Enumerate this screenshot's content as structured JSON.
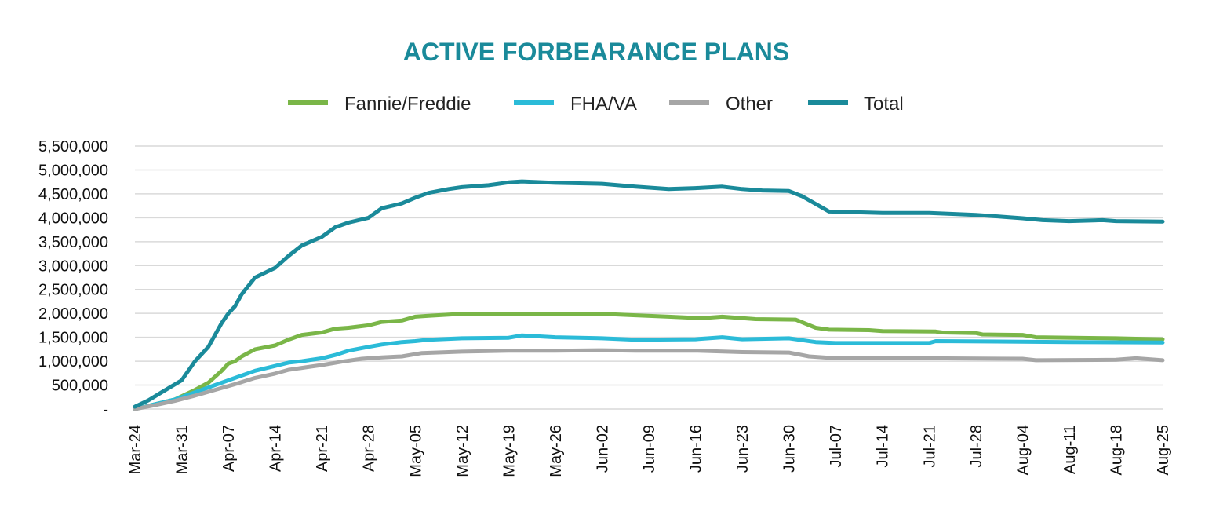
{
  "colors": {
    "title": "#1a8a9a",
    "fannie": "#7ab648",
    "fha": "#2bbbd8",
    "other": "#a6a6a6",
    "total": "#1a8a9a",
    "grid": "#d9d9d9"
  },
  "chart_data": {
    "type": "line",
    "title": "ACTIVE FORBEARANCE PLANS",
    "xlabel": "",
    "ylabel": "",
    "ylim": [
      0,
      5500000
    ],
    "y_ticks": [
      0,
      500000,
      1000000,
      1500000,
      2000000,
      2500000,
      3000000,
      3500000,
      4000000,
      4500000,
      5000000,
      5500000
    ],
    "y_tick_labels": [
      "-",
      "500,000",
      "1,000,000",
      "1,500,000",
      "2,000,000",
      "2,500,000",
      "3,000,000",
      "3,500,000",
      "4,000,000",
      "4,500,000",
      "5,000,000",
      "5,500,000"
    ],
    "x_day_range": [
      0,
      154
    ],
    "x_tick_days": [
      0,
      7,
      14,
      21,
      28,
      35,
      42,
      49,
      56,
      63,
      70,
      77,
      84,
      91,
      98,
      105,
      112,
      119,
      126,
      133,
      140,
      147,
      154
    ],
    "x_tick_labels": [
      "Mar-24",
      "Mar-31",
      "Apr-07",
      "Apr-14",
      "Apr-21",
      "Apr-28",
      "May-05",
      "May-12",
      "May-19",
      "May-26",
      "Jun-02",
      "Jun-09",
      "Jun-16",
      "Jun-23",
      "Jun-30",
      "Jul-07",
      "Jul-14",
      "Jul-21",
      "Jul-28",
      "Aug-04",
      "Aug-11",
      "Aug-18",
      "Aug-25"
    ],
    "legend_position": "top-center",
    "series": [
      {
        "name": "Fannie/Freddie",
        "color_key": "fannie",
        "points": [
          [
            0,
            0
          ],
          [
            3,
            100000
          ],
          [
            6,
            200000
          ],
          [
            9,
            400000
          ],
          [
            11,
            550000
          ],
          [
            13,
            800000
          ],
          [
            14,
            950000
          ],
          [
            15,
            1000000
          ],
          [
            16,
            1100000
          ],
          [
            18,
            1250000
          ],
          [
            21,
            1330000
          ],
          [
            23,
            1450000
          ],
          [
            25,
            1550000
          ],
          [
            28,
            1600000
          ],
          [
            30,
            1680000
          ],
          [
            32,
            1700000
          ],
          [
            35,
            1750000
          ],
          [
            37,
            1820000
          ],
          [
            40,
            1850000
          ],
          [
            42,
            1930000
          ],
          [
            44,
            1950000
          ],
          [
            49,
            1990000
          ],
          [
            56,
            1990000
          ],
          [
            63,
            1990000
          ],
          [
            70,
            1990000
          ],
          [
            75,
            1960000
          ],
          [
            80,
            1930000
          ],
          [
            85,
            1900000
          ],
          [
            88,
            1930000
          ],
          [
            91,
            1900000
          ],
          [
            93,
            1880000
          ],
          [
            99,
            1870000
          ],
          [
            102,
            1700000
          ],
          [
            104,
            1660000
          ],
          [
            110,
            1650000
          ],
          [
            112,
            1630000
          ],
          [
            120,
            1620000
          ],
          [
            121,
            1600000
          ],
          [
            126,
            1590000
          ],
          [
            127,
            1560000
          ],
          [
            133,
            1550000
          ],
          [
            135,
            1500000
          ],
          [
            147,
            1480000
          ],
          [
            150,
            1470000
          ],
          [
            154,
            1460000
          ]
        ]
      },
      {
        "name": "FHA/VA",
        "color_key": "fha",
        "points": [
          [
            0,
            0
          ],
          [
            3,
            100000
          ],
          [
            6,
            200000
          ],
          [
            9,
            350000
          ],
          [
            12,
            500000
          ],
          [
            15,
            650000
          ],
          [
            18,
            800000
          ],
          [
            21,
            900000
          ],
          [
            23,
            970000
          ],
          [
            25,
            1000000
          ],
          [
            28,
            1060000
          ],
          [
            30,
            1130000
          ],
          [
            32,
            1220000
          ],
          [
            35,
            1300000
          ],
          [
            37,
            1350000
          ],
          [
            40,
            1400000
          ],
          [
            42,
            1420000
          ],
          [
            44,
            1450000
          ],
          [
            49,
            1480000
          ],
          [
            56,
            1490000
          ],
          [
            58,
            1540000
          ],
          [
            63,
            1500000
          ],
          [
            70,
            1480000
          ],
          [
            75,
            1450000
          ],
          [
            84,
            1460000
          ],
          [
            88,
            1500000
          ],
          [
            91,
            1460000
          ],
          [
            98,
            1480000
          ],
          [
            102,
            1400000
          ],
          [
            105,
            1380000
          ],
          [
            119,
            1380000
          ],
          [
            120,
            1420000
          ],
          [
            140,
            1400000
          ],
          [
            154,
            1390000
          ]
        ]
      },
      {
        "name": "Other",
        "color_key": "other",
        "points": [
          [
            0,
            0
          ],
          [
            3,
            80000
          ],
          [
            6,
            170000
          ],
          [
            9,
            280000
          ],
          [
            12,
            400000
          ],
          [
            15,
            520000
          ],
          [
            18,
            650000
          ],
          [
            21,
            740000
          ],
          [
            23,
            820000
          ],
          [
            26,
            880000
          ],
          [
            28,
            920000
          ],
          [
            31,
            990000
          ],
          [
            34,
            1050000
          ],
          [
            37,
            1080000
          ],
          [
            40,
            1100000
          ],
          [
            43,
            1170000
          ],
          [
            49,
            1200000
          ],
          [
            56,
            1220000
          ],
          [
            63,
            1220000
          ],
          [
            70,
            1230000
          ],
          [
            75,
            1220000
          ],
          [
            84,
            1220000
          ],
          [
            91,
            1190000
          ],
          [
            98,
            1180000
          ],
          [
            101,
            1100000
          ],
          [
            104,
            1070000
          ],
          [
            119,
            1060000
          ],
          [
            133,
            1050000
          ],
          [
            135,
            1020000
          ],
          [
            147,
            1030000
          ],
          [
            150,
            1060000
          ],
          [
            154,
            1020000
          ]
        ]
      },
      {
        "name": "Total",
        "color_key": "total",
        "points": [
          [
            0,
            50000
          ],
          [
            2,
            180000
          ],
          [
            4,
            350000
          ],
          [
            7,
            600000
          ],
          [
            9,
            1000000
          ],
          [
            11,
            1300000
          ],
          [
            13,
            1800000
          ],
          [
            14,
            2000000
          ],
          [
            15,
            2150000
          ],
          [
            16,
            2400000
          ],
          [
            18,
            2750000
          ],
          [
            21,
            2950000
          ],
          [
            23,
            3200000
          ],
          [
            25,
            3420000
          ],
          [
            28,
            3600000
          ],
          [
            30,
            3800000
          ],
          [
            32,
            3900000
          ],
          [
            35,
            4000000
          ],
          [
            37,
            4200000
          ],
          [
            40,
            4300000
          ],
          [
            42,
            4420000
          ],
          [
            44,
            4520000
          ],
          [
            47,
            4600000
          ],
          [
            49,
            4640000
          ],
          [
            53,
            4680000
          ],
          [
            56,
            4740000
          ],
          [
            58,
            4760000
          ],
          [
            63,
            4730000
          ],
          [
            70,
            4710000
          ],
          [
            75,
            4650000
          ],
          [
            80,
            4600000
          ],
          [
            84,
            4620000
          ],
          [
            88,
            4650000
          ],
          [
            91,
            4600000
          ],
          [
            94,
            4570000
          ],
          [
            98,
            4560000
          ],
          [
            100,
            4450000
          ],
          [
            104,
            4130000
          ],
          [
            112,
            4100000
          ],
          [
            119,
            4100000
          ],
          [
            126,
            4060000
          ],
          [
            130,
            4020000
          ],
          [
            133,
            3990000
          ],
          [
            136,
            3950000
          ],
          [
            140,
            3930000
          ],
          [
            145,
            3950000
          ],
          [
            147,
            3930000
          ],
          [
            154,
            3920000
          ]
        ]
      }
    ]
  }
}
